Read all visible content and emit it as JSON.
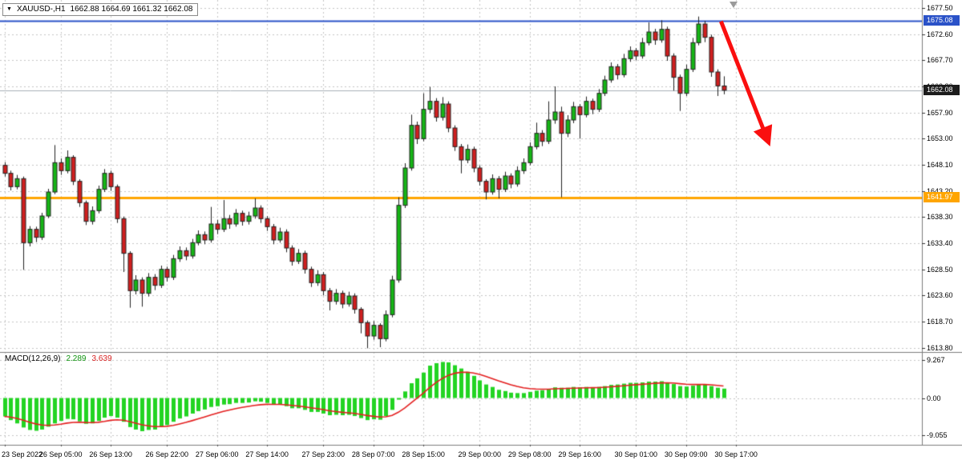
{
  "title_bar": {
    "dropdown_icon": "▼",
    "symbol_period": "XAUUSD-,H1",
    "ohlc": "1662.88 1664.69 1661.32 1662.08"
  },
  "colors": {
    "background": "#ffffff",
    "grid": "#c6c6c6",
    "bull": "#16b616",
    "bear": "#d01f1f",
    "candle_outline": "#222222",
    "histogram": "#23d423",
    "signal": "#e41f1f",
    "arrow": "#fa0f0f",
    "blue_line": "#2a52c8",
    "orange_line": "#ffa500",
    "price_line": "#a8b0b8",
    "bid_box": "#1c1c1c",
    "axis_text": "#000000",
    "separator": "#7d7d7d"
  },
  "chart_data": [
    {
      "type": "candlestick",
      "symbol": "XAUUSD",
      "timeframe": "H1",
      "last_ohlc": {
        "open": 1662.88,
        "high": 1664.69,
        "low": 1661.32,
        "close": 1662.08
      },
      "y_axis": {
        "min": 1613.0,
        "max": 1679.0,
        "ticks": [
          "1677.50",
          "1672.60",
          "1667.70",
          "1662.80",
          "1657.90",
          "1653.00",
          "1648.10",
          "1643.20",
          "1638.30",
          "1633.40",
          "1628.50",
          "1623.60",
          "1618.70",
          "1613.80"
        ]
      },
      "x_axis": {
        "labels": [
          {
            "text": "23 Sep 2022",
            "index": 0
          },
          {
            "text": "26 Sep 05:00",
            "index": 9
          },
          {
            "text": "26 Sep 13:00",
            "index": 17
          },
          {
            "text": "26 Sep 22:00",
            "index": 26
          },
          {
            "text": "27 Sep 06:00",
            "index": 34
          },
          {
            "text": "27 Sep 14:00",
            "index": 42
          },
          {
            "text": "27 Sep 23:00",
            "index": 51
          },
          {
            "text": "28 Sep 07:00",
            "index": 59
          },
          {
            "text": "28 Sep 15:00",
            "index": 67
          },
          {
            "text": "29 Sep 00:00",
            "index": 76
          },
          {
            "text": "29 Sep 08:00",
            "index": 84
          },
          {
            "text": "29 Sep 16:00",
            "index": 92
          },
          {
            "text": "30 Sep 01:00",
            "index": 101
          },
          {
            "text": "30 Sep 09:00",
            "index": 109
          },
          {
            "text": "30 Sep 17:00",
            "index": 117
          }
        ]
      },
      "candles": [
        [
          1648.0,
          1648.6,
          1645.9,
          1646.5
        ],
        [
          1646.5,
          1647.0,
          1643.3,
          1644.0
        ],
        [
          1644.0,
          1646.2,
          1643.5,
          1645.5
        ],
        [
          1645.5,
          1645.9,
          1628.4,
          1633.5
        ],
        [
          1633.5,
          1636.6,
          1632.8,
          1636.0
        ],
        [
          1636.0,
          1636.5,
          1633.6,
          1634.5
        ],
        [
          1634.5,
          1639.1,
          1634.0,
          1638.5
        ],
        [
          1638.5,
          1643.6,
          1638.1,
          1643.0
        ],
        [
          1643.0,
          1651.8,
          1642.6,
          1648.5
        ],
        [
          1648.5,
          1649.3,
          1646.2,
          1647.0
        ],
        [
          1647.0,
          1650.8,
          1646.5,
          1649.5
        ],
        [
          1649.5,
          1649.9,
          1644.3,
          1645.0
        ],
        [
          1645.0,
          1645.4,
          1640.2,
          1641.0
        ],
        [
          1641.0,
          1641.4,
          1636.8,
          1637.5
        ],
        [
          1637.5,
          1640.3,
          1636.9,
          1639.5
        ],
        [
          1639.5,
          1644.2,
          1639.0,
          1643.5
        ],
        [
          1643.5,
          1647.3,
          1643.0,
          1646.5
        ],
        [
          1646.5,
          1647.0,
          1643.2,
          1644.0
        ],
        [
          1644.0,
          1644.4,
          1637.2,
          1638.0
        ],
        [
          1638.0,
          1638.4,
          1628.0,
          1631.5
        ],
        [
          1631.5,
          1631.9,
          1621.3,
          1624.5
        ],
        [
          1624.5,
          1627.4,
          1623.8,
          1626.5
        ],
        [
          1626.5,
          1627.0,
          1621.5,
          1624.0
        ],
        [
          1624.0,
          1627.8,
          1623.4,
          1627.0
        ],
        [
          1627.0,
          1627.6,
          1624.6,
          1625.5
        ],
        [
          1625.5,
          1629.2,
          1625.0,
          1628.5
        ],
        [
          1628.5,
          1629.0,
          1626.2,
          1627.0
        ],
        [
          1627.0,
          1631.2,
          1626.5,
          1630.5
        ],
        [
          1630.5,
          1632.8,
          1629.9,
          1632.0
        ],
        [
          1632.0,
          1632.6,
          1630.2,
          1631.0
        ],
        [
          1631.0,
          1634.2,
          1630.5,
          1633.5
        ],
        [
          1633.5,
          1635.8,
          1633.0,
          1635.0
        ],
        [
          1635.0,
          1635.6,
          1633.2,
          1634.0
        ],
        [
          1634.0,
          1640.2,
          1633.5,
          1637.0
        ],
        [
          1637.0,
          1637.8,
          1635.1,
          1636.0
        ],
        [
          1636.0,
          1641.5,
          1635.5,
          1638.0
        ],
        [
          1638.0,
          1638.7,
          1636.1,
          1637.0
        ],
        [
          1637.0,
          1639.8,
          1636.5,
          1639.0
        ],
        [
          1639.0,
          1639.5,
          1636.7,
          1637.5
        ],
        [
          1637.5,
          1639.3,
          1636.9,
          1638.5
        ],
        [
          1638.5,
          1641.8,
          1638.0,
          1640.0
        ],
        [
          1640.0,
          1640.5,
          1637.2,
          1638.0
        ],
        [
          1638.0,
          1638.5,
          1635.7,
          1636.5
        ],
        [
          1636.5,
          1637.0,
          1633.2,
          1634.0
        ],
        [
          1634.0,
          1636.3,
          1633.5,
          1635.5
        ],
        [
          1635.5,
          1636.0,
          1631.7,
          1632.5
        ],
        [
          1632.5,
          1633.0,
          1629.2,
          1630.0
        ],
        [
          1630.0,
          1632.3,
          1629.5,
          1631.5
        ],
        [
          1631.5,
          1632.0,
          1627.7,
          1628.5
        ],
        [
          1628.5,
          1629.0,
          1625.2,
          1626.0
        ],
        [
          1626.0,
          1628.3,
          1625.4,
          1627.5
        ],
        [
          1627.5,
          1628.0,
          1623.6,
          1624.5
        ],
        [
          1624.5,
          1625.0,
          1620.8,
          1622.5
        ],
        [
          1622.5,
          1624.8,
          1621.9,
          1624.0
        ],
        [
          1624.0,
          1624.5,
          1621.2,
          1622.0
        ],
        [
          1622.0,
          1624.3,
          1621.5,
          1623.5
        ],
        [
          1623.5,
          1624.0,
          1620.2,
          1621.0
        ],
        [
          1621.0,
          1621.4,
          1616.5,
          1618.5
        ],
        [
          1618.5,
          1618.9,
          1613.7,
          1616.0
        ],
        [
          1616.0,
          1618.8,
          1615.3,
          1618.0
        ],
        [
          1618.0,
          1618.4,
          1613.9,
          1615.5
        ],
        [
          1615.5,
          1620.8,
          1615.0,
          1620.0
        ],
        [
          1620.0,
          1627.3,
          1619.5,
          1626.5
        ],
        [
          1626.5,
          1642.0,
          1626.0,
          1640.5
        ],
        [
          1640.5,
          1648.4,
          1640.0,
          1647.5
        ],
        [
          1647.5,
          1657.5,
          1647.0,
          1655.5
        ],
        [
          1655.5,
          1656.2,
          1652.0,
          1653.0
        ],
        [
          1653.0,
          1661.5,
          1652.5,
          1658.5
        ],
        [
          1658.5,
          1662.7,
          1657.8,
          1660.0
        ],
        [
          1660.0,
          1660.6,
          1656.2,
          1657.0
        ],
        [
          1657.0,
          1660.8,
          1656.4,
          1659.5
        ],
        [
          1659.5,
          1660.0,
          1654.2,
          1655.0
        ],
        [
          1655.0,
          1655.5,
          1650.7,
          1651.5
        ],
        [
          1651.5,
          1652.0,
          1646.5,
          1649.0
        ],
        [
          1649.0,
          1651.9,
          1648.4,
          1651.0
        ],
        [
          1651.0,
          1651.5,
          1646.7,
          1647.5
        ],
        [
          1647.5,
          1648.0,
          1644.2,
          1645.0
        ],
        [
          1645.0,
          1645.4,
          1641.6,
          1643.0
        ],
        [
          1643.0,
          1646.3,
          1642.5,
          1645.5
        ],
        [
          1645.5,
          1646.0,
          1641.8,
          1643.5
        ],
        [
          1643.5,
          1646.8,
          1643.0,
          1646.0
        ],
        [
          1646.0,
          1646.5,
          1643.7,
          1644.5
        ],
        [
          1644.5,
          1647.8,
          1644.0,
          1647.0
        ],
        [
          1647.0,
          1649.3,
          1646.4,
          1648.5
        ],
        [
          1648.5,
          1652.3,
          1648.0,
          1651.5
        ],
        [
          1651.5,
          1656.0,
          1651.0,
          1654.0
        ],
        [
          1654.0,
          1654.6,
          1651.6,
          1652.5
        ],
        [
          1652.5,
          1660.0,
          1652.0,
          1656.5
        ],
        [
          1656.5,
          1662.8,
          1655.8,
          1658.0
        ],
        [
          1658.0,
          1659.0,
          1642.0,
          1654.0
        ],
        [
          1654.0,
          1657.4,
          1653.3,
          1656.5
        ],
        [
          1656.5,
          1659.9,
          1655.9,
          1659.0
        ],
        [
          1659.0,
          1659.5,
          1653.0,
          1657.5
        ],
        [
          1657.5,
          1660.9,
          1657.0,
          1660.0
        ],
        [
          1660.0,
          1660.5,
          1657.6,
          1658.5
        ],
        [
          1658.5,
          1662.3,
          1658.0,
          1661.5
        ],
        [
          1661.5,
          1664.8,
          1661.0,
          1664.0
        ],
        [
          1664.0,
          1667.3,
          1663.5,
          1666.5
        ],
        [
          1666.5,
          1667.0,
          1664.1,
          1665.0
        ],
        [
          1665.0,
          1668.9,
          1664.5,
          1668.0
        ],
        [
          1668.0,
          1670.3,
          1667.4,
          1669.5
        ],
        [
          1669.5,
          1670.0,
          1667.7,
          1668.5
        ],
        [
          1668.5,
          1671.9,
          1668.0,
          1671.0
        ],
        [
          1671.0,
          1674.8,
          1670.5,
          1673.0
        ],
        [
          1673.0,
          1673.6,
          1670.6,
          1671.5
        ],
        [
          1671.5,
          1675.2,
          1671.0,
          1673.5
        ],
        [
          1673.5,
          1674.0,
          1667.6,
          1668.5
        ],
        [
          1668.5,
          1669.0,
          1662.0,
          1664.5
        ],
        [
          1664.5,
          1665.0,
          1658.2,
          1661.5
        ],
        [
          1661.5,
          1666.9,
          1661.0,
          1666.0
        ],
        [
          1666.0,
          1671.9,
          1665.5,
          1671.0
        ],
        [
          1671.0,
          1675.9,
          1670.5,
          1674.5
        ],
        [
          1674.5,
          1675.1,
          1671.1,
          1672.0
        ],
        [
          1672.0,
          1672.5,
          1664.6,
          1665.5
        ],
        [
          1665.5,
          1666.0,
          1661.0,
          1662.9
        ],
        [
          1662.88,
          1664.69,
          1661.32,
          1662.08
        ]
      ],
      "overlays": {
        "horizontal_lines": [
          {
            "name": "resistance-line",
            "label": "1675.08",
            "value": 1675.08,
            "color_key": "blue_line",
            "width": 2,
            "text_color": "#ffffff"
          },
          {
            "name": "bid-price-line",
            "label": "1662.08",
            "value": 1662.08,
            "color_key": "price_line",
            "box_color": "#1c1c1c",
            "width": 1,
            "text_color": "#ffffff"
          },
          {
            "name": "support-line",
            "label": "1641.97",
            "value": 1641.97,
            "color_key": "orange_line",
            "width": 3,
            "text_color": "#ffffff"
          }
        ],
        "arrow": {
          "from": {
            "index": 114.6,
            "price": 1675.0
          },
          "to": {
            "index": 121.8,
            "price": 1653.5
          }
        }
      }
    },
    {
      "type": "bar",
      "name": "MACD",
      "label": "MACD(12,26,9)",
      "value_main": "2.289",
      "value_signal": "3.639",
      "signal_period": 9,
      "y_axis": {
        "ticks": [
          "9.267",
          "0.00",
          "-9.055"
        ]
      },
      "histogram": [
        -4.5,
        -5.4,
        -6.2,
        -7.2,
        -7.8,
        -8.0,
        -7.7,
        -7.0,
        -6.2,
        -5.6,
        -5.1,
        -5.2,
        -5.7,
        -6.3,
        -6.2,
        -5.6,
        -4.8,
        -4.4,
        -4.8,
        -5.8,
        -7.1,
        -7.7,
        -8.1,
        -7.8,
        -7.7,
        -7.0,
        -6.6,
        -5.8,
        -5.0,
        -4.5,
        -3.8,
        -3.2,
        -2.8,
        -2.2,
        -2.0,
        -1.6,
        -1.5,
        -1.2,
        -1.2,
        -1.1,
        -0.8,
        -0.9,
        -1.2,
        -1.6,
        -1.6,
        -2.0,
        -2.5,
        -2.5,
        -2.9,
        -3.4,
        -3.4,
        -3.8,
        -4.2,
        -4.1,
        -4.2,
        -4.1,
        -4.4,
        -4.9,
        -5.4,
        -5.2,
        -5.3,
        -4.4,
        -2.9,
        -0.4,
        1.6,
        3.6,
        4.8,
        6.2,
        7.9,
        8.5,
        8.8,
        8.7,
        8.0,
        7.2,
        6.4,
        5.4,
        4.3,
        3.3,
        2.7,
        2.0,
        1.7,
        1.3,
        1.2,
        1.2,
        1.5,
        1.8,
        1.9,
        2.2,
        2.6,
        2.5,
        2.5,
        2.7,
        2.6,
        2.7,
        2.6,
        2.7,
        2.9,
        3.2,
        3.3,
        3.5,
        3.7,
        3.7,
        3.8,
        4.0,
        4.0,
        4.1,
        3.8,
        3.4,
        2.9,
        2.8,
        3.0,
        3.3,
        3.3,
        2.9,
        2.5,
        2.289
      ]
    }
  ]
}
